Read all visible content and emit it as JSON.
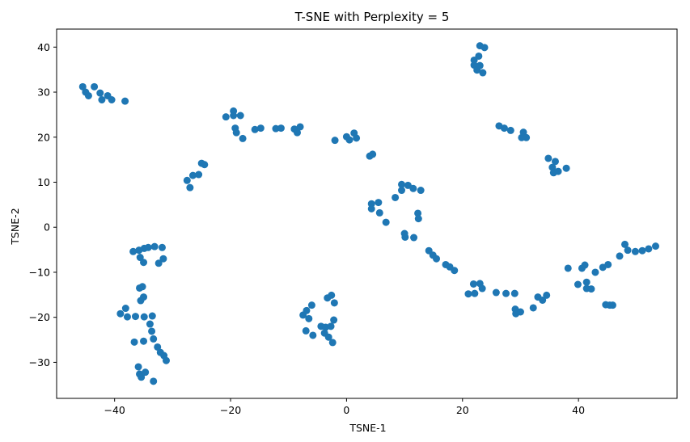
{
  "chart_data": {
    "type": "scatter",
    "title": "T-SNE with Perplexity = 5",
    "xlabel": "TSNE-1",
    "ylabel": "TSNE-2",
    "xlim": [
      -50,
      57
    ],
    "ylim": [
      -38,
      44
    ],
    "xticks": [
      -40,
      -20,
      0,
      20,
      40
    ],
    "yticks": [
      -30,
      -20,
      -10,
      0,
      10,
      20,
      30,
      40
    ],
    "grid": false,
    "marker_color": "#1f77b4",
    "series": [
      {
        "points": [
          [
            -45.5,
            31.2
          ],
          [
            -45.0,
            30.0
          ],
          [
            -44.5,
            29.2
          ],
          [
            -43.5,
            31.2
          ],
          [
            -42.5,
            29.8
          ],
          [
            -42.2,
            28.3
          ],
          [
            -41.2,
            29.2
          ],
          [
            -40.5,
            28.3
          ],
          [
            -38.2,
            28.0
          ],
          [
            -20.8,
            24.5
          ],
          [
            -19.5,
            25.8
          ],
          [
            -19.5,
            24.8
          ],
          [
            -19.2,
            22.0
          ],
          [
            -19.0,
            21.0
          ],
          [
            -18.3,
            24.8
          ],
          [
            -17.9,
            19.7
          ],
          [
            -15.8,
            21.7
          ],
          [
            -14.8,
            22.0
          ],
          [
            -12.2,
            21.9
          ],
          [
            -11.3,
            22.0
          ],
          [
            -9.0,
            21.8
          ],
          [
            -8.5,
            21.0
          ],
          [
            -8.0,
            22.3
          ],
          [
            -27.5,
            10.4
          ],
          [
            -27.0,
            8.8
          ],
          [
            -26.5,
            11.5
          ],
          [
            -25.5,
            11.7
          ],
          [
            -25.0,
            14.2
          ],
          [
            -24.5,
            13.9
          ],
          [
            -2.0,
            19.3
          ],
          [
            0.0,
            20.1
          ],
          [
            0.5,
            19.4
          ],
          [
            1.3,
            20.9
          ],
          [
            1.7,
            19.8
          ],
          [
            4.0,
            15.8
          ],
          [
            4.5,
            16.2
          ],
          [
            22.0,
            36.0
          ],
          [
            22.0,
            37.1
          ],
          [
            22.5,
            34.9
          ],
          [
            22.8,
            38.0
          ],
          [
            23.0,
            40.3
          ],
          [
            23.0,
            35.9
          ],
          [
            23.5,
            34.3
          ],
          [
            23.8,
            39.9
          ],
          [
            26.3,
            22.5
          ],
          [
            27.2,
            22.0
          ],
          [
            28.3,
            21.5
          ],
          [
            30.2,
            19.9
          ],
          [
            30.5,
            21.1
          ],
          [
            31.0,
            19.9
          ],
          [
            34.8,
            15.3
          ],
          [
            35.5,
            13.3
          ],
          [
            35.7,
            12.1
          ],
          [
            36.0,
            14.6
          ],
          [
            36.5,
            12.4
          ],
          [
            37.9,
            13.1
          ],
          [
            9.5,
            9.5
          ],
          [
            9.5,
            8.2
          ],
          [
            10.6,
            9.3
          ],
          [
            11.5,
            8.6
          ],
          [
            12.8,
            8.2
          ],
          [
            8.4,
            6.6
          ],
          [
            4.3,
            5.2
          ],
          [
            5.5,
            5.5
          ],
          [
            4.3,
            4.1
          ],
          [
            5.7,
            3.2
          ],
          [
            6.8,
            1.1
          ],
          [
            12.3,
            3.1
          ],
          [
            12.4,
            1.9
          ],
          [
            10.0,
            -1.4
          ],
          [
            10.1,
            -2.2
          ],
          [
            11.6,
            -2.3
          ],
          [
            14.2,
            -5.2
          ],
          [
            14.9,
            -6.2
          ],
          [
            15.5,
            -7.0
          ],
          [
            17.1,
            -8.3
          ],
          [
            17.8,
            -8.8
          ],
          [
            18.6,
            -9.6
          ],
          [
            21.0,
            -14.8
          ],
          [
            21.9,
            -12.6
          ],
          [
            22.1,
            -14.7
          ],
          [
            23.0,
            -12.5
          ],
          [
            23.4,
            -13.6
          ],
          [
            25.8,
            -14.5
          ],
          [
            27.5,
            -14.7
          ],
          [
            29.0,
            -14.7
          ],
          [
            29.1,
            -18.2
          ],
          [
            29.2,
            -19.2
          ],
          [
            30.0,
            -18.8
          ],
          [
            32.2,
            -17.9
          ],
          [
            33.0,
            -15.5
          ],
          [
            33.8,
            -16.2
          ],
          [
            34.5,
            -15.1
          ],
          [
            38.2,
            -9.1
          ],
          [
            39.9,
            -12.7
          ],
          [
            40.6,
            -9.1
          ],
          [
            41.1,
            -8.4
          ],
          [
            41.4,
            -13.6
          ],
          [
            41.4,
            -12.2
          ],
          [
            42.2,
            -13.7
          ],
          [
            42.9,
            -10.0
          ],
          [
            44.2,
            -8.9
          ],
          [
            44.7,
            -17.2
          ],
          [
            45.1,
            -8.3
          ],
          [
            45.4,
            -17.3
          ],
          [
            45.9,
            -17.3
          ],
          [
            47.1,
            -6.4
          ],
          [
            48.0,
            -3.8
          ],
          [
            48.5,
            -5.1
          ],
          [
            49.8,
            -5.4
          ],
          [
            51.0,
            -5.2
          ],
          [
            52.1,
            -4.8
          ],
          [
            53.3,
            -4.2
          ],
          [
            -36.8,
            -5.4
          ],
          [
            -35.8,
            -5.1
          ],
          [
            -35.6,
            -6.7
          ],
          [
            -35.0,
            -7.8
          ],
          [
            -34.9,
            -4.7
          ],
          [
            -34.2,
            -4.5
          ],
          [
            -33.1,
            -4.3
          ],
          [
            -32.4,
            -8.0
          ],
          [
            -31.8,
            -4.5
          ],
          [
            -31.6,
            -7.0
          ],
          [
            -35.7,
            -13.5
          ],
          [
            -35.2,
            -13.2
          ],
          [
            -35.5,
            -16.3
          ],
          [
            -35.0,
            -15.5
          ],
          [
            -39.0,
            -19.2
          ],
          [
            -38.1,
            -18.0
          ],
          [
            -37.8,
            -19.9
          ],
          [
            -36.4,
            -19.8
          ],
          [
            -34.9,
            -19.9
          ],
          [
            -33.5,
            -19.7
          ],
          [
            -36.6,
            -25.5
          ],
          [
            -35.0,
            -25.3
          ],
          [
            -33.9,
            -21.5
          ],
          [
            -33.6,
            -23.1
          ],
          [
            -33.3,
            -24.8
          ],
          [
            -32.6,
            -26.6
          ],
          [
            -32.1,
            -27.8
          ],
          [
            -31.5,
            -28.5
          ],
          [
            -31.1,
            -29.6
          ],
          [
            -35.9,
            -31.0
          ],
          [
            -35.7,
            -32.6
          ],
          [
            -35.4,
            -33.3
          ],
          [
            -34.7,
            -32.2
          ],
          [
            -33.3,
            -34.2
          ],
          [
            -7.5,
            -19.5
          ],
          [
            -6.9,
            -18.5
          ],
          [
            -6.5,
            -20.3
          ],
          [
            -6.0,
            -17.3
          ],
          [
            -7.0,
            -23.0
          ],
          [
            -5.8,
            -24.0
          ],
          [
            -4.4,
            -22.0
          ],
          [
            -3.6,
            -22.2
          ],
          [
            -3.8,
            -23.5
          ],
          [
            -3.1,
            -24.4
          ],
          [
            -2.7,
            -22.0
          ],
          [
            -2.4,
            -25.6
          ],
          [
            -3.3,
            -15.7
          ],
          [
            -2.6,
            -15.1
          ],
          [
            -2.1,
            -16.8
          ],
          [
            -2.2,
            -20.6
          ]
        ]
      }
    ]
  }
}
